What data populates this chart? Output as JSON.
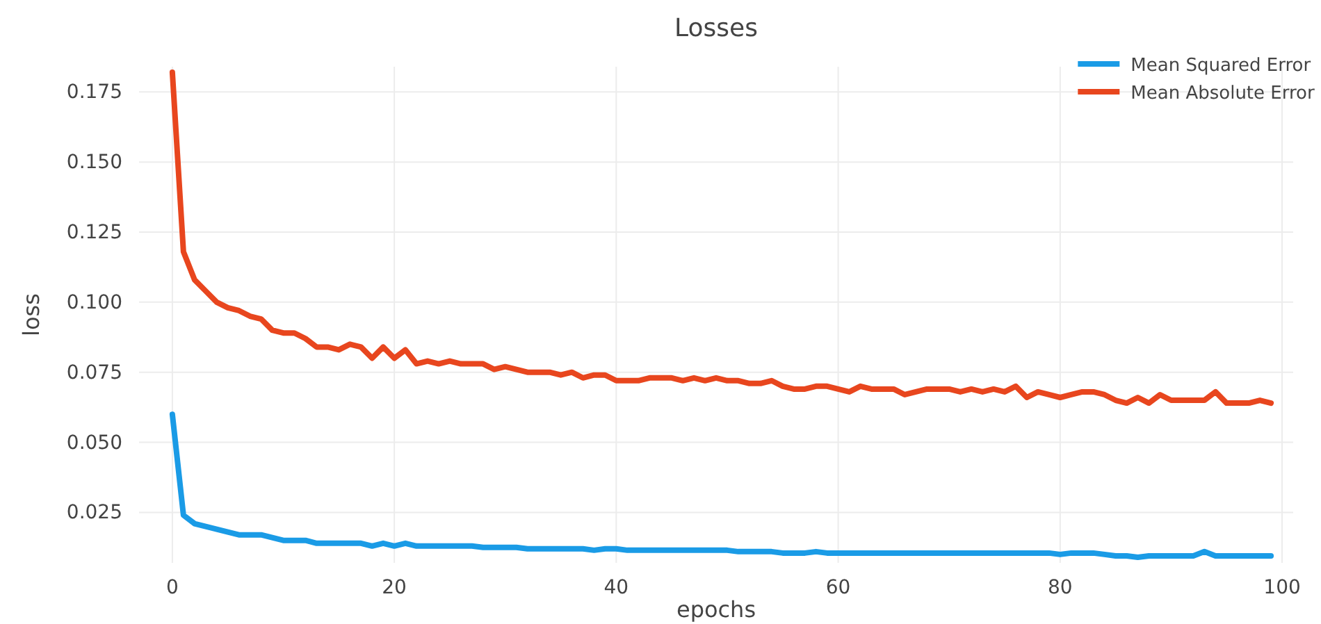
{
  "chart_data": {
    "type": "line",
    "title": "Losses",
    "xlabel": "epochs",
    "ylabel": "loss",
    "x": [
      0,
      1,
      2,
      3,
      4,
      5,
      6,
      7,
      8,
      9,
      10,
      11,
      12,
      13,
      14,
      15,
      16,
      17,
      18,
      19,
      20,
      21,
      22,
      23,
      24,
      25,
      26,
      27,
      28,
      29,
      30,
      31,
      32,
      33,
      34,
      35,
      36,
      37,
      38,
      39,
      40,
      41,
      42,
      43,
      44,
      45,
      46,
      47,
      48,
      49,
      50,
      51,
      52,
      53,
      54,
      55,
      56,
      57,
      58,
      59,
      60,
      61,
      62,
      63,
      64,
      65,
      66,
      67,
      68,
      69,
      70,
      71,
      72,
      73,
      74,
      75,
      76,
      77,
      78,
      79,
      80,
      81,
      82,
      83,
      84,
      85,
      86,
      87,
      88,
      89,
      90,
      91,
      92,
      93,
      94,
      95,
      96,
      97,
      98,
      99
    ],
    "series": [
      {
        "name": "Mean Squared Error",
        "color": "#1a9be6",
        "values": [
          0.06,
          0.024,
          0.021,
          0.02,
          0.019,
          0.018,
          0.017,
          0.017,
          0.017,
          0.016,
          0.015,
          0.015,
          0.015,
          0.014,
          0.014,
          0.014,
          0.014,
          0.014,
          0.013,
          0.014,
          0.013,
          0.014,
          0.013,
          0.013,
          0.013,
          0.013,
          0.013,
          0.013,
          0.0125,
          0.0125,
          0.0125,
          0.0125,
          0.012,
          0.012,
          0.012,
          0.012,
          0.012,
          0.012,
          0.0115,
          0.012,
          0.012,
          0.0115,
          0.0115,
          0.0115,
          0.0115,
          0.0115,
          0.0115,
          0.0115,
          0.0115,
          0.0115,
          0.0115,
          0.011,
          0.011,
          0.011,
          0.011,
          0.0105,
          0.0105,
          0.0105,
          0.011,
          0.0105,
          0.0105,
          0.0105,
          0.0105,
          0.0105,
          0.0105,
          0.0105,
          0.0105,
          0.0105,
          0.0105,
          0.0105,
          0.0105,
          0.0105,
          0.0105,
          0.0105,
          0.0105,
          0.0105,
          0.0105,
          0.0105,
          0.0105,
          0.0105,
          0.01,
          0.0105,
          0.0105,
          0.0105,
          0.01,
          0.0095,
          0.0095,
          0.009,
          0.0095,
          0.0095,
          0.0095,
          0.0095,
          0.0095,
          0.011,
          0.0095,
          0.0095,
          0.0095,
          0.0095,
          0.0095,
          0.0095
        ]
      },
      {
        "name": "Mean Absolute Error",
        "color": "#e8461e",
        "values": [
          0.182,
          0.118,
          0.108,
          0.104,
          0.1,
          0.098,
          0.097,
          0.095,
          0.094,
          0.09,
          0.089,
          0.089,
          0.087,
          0.084,
          0.084,
          0.083,
          0.085,
          0.084,
          0.08,
          0.084,
          0.08,
          0.083,
          0.078,
          0.079,
          0.078,
          0.079,
          0.078,
          0.078,
          0.078,
          0.076,
          0.077,
          0.076,
          0.075,
          0.075,
          0.075,
          0.074,
          0.075,
          0.073,
          0.074,
          0.074,
          0.072,
          0.072,
          0.072,
          0.073,
          0.073,
          0.073,
          0.072,
          0.073,
          0.072,
          0.073,
          0.072,
          0.072,
          0.071,
          0.071,
          0.072,
          0.07,
          0.069,
          0.069,
          0.07,
          0.07,
          0.069,
          0.068,
          0.07,
          0.069,
          0.069,
          0.069,
          0.067,
          0.068,
          0.069,
          0.069,
          0.069,
          0.068,
          0.069,
          0.068,
          0.069,
          0.068,
          0.07,
          0.066,
          0.068,
          0.067,
          0.066,
          0.067,
          0.068,
          0.068,
          0.067,
          0.065,
          0.064,
          0.066,
          0.064,
          0.067,
          0.065,
          0.065,
          0.065,
          0.065,
          0.068,
          0.064,
          0.064,
          0.064,
          0.065,
          0.064
        ]
      }
    ],
    "xlim": [
      -3,
      101
    ],
    "xticks": [
      0,
      20,
      40,
      60,
      80,
      100
    ],
    "ylim": [
      0.007,
      0.184
    ],
    "yticks": [
      {
        "value": 0.025,
        "label": "0.025"
      },
      {
        "value": 0.05,
        "label": "0.050"
      },
      {
        "value": 0.075,
        "label": "0.075"
      },
      {
        "value": 0.1,
        "label": "0.100"
      },
      {
        "value": 0.125,
        "label": "0.125"
      },
      {
        "value": 0.15,
        "label": "0.150"
      },
      {
        "value": 0.175,
        "label": "0.175"
      }
    ],
    "grid": true,
    "legend": "top right",
    "line_style": "solid",
    "marker": "none"
  }
}
